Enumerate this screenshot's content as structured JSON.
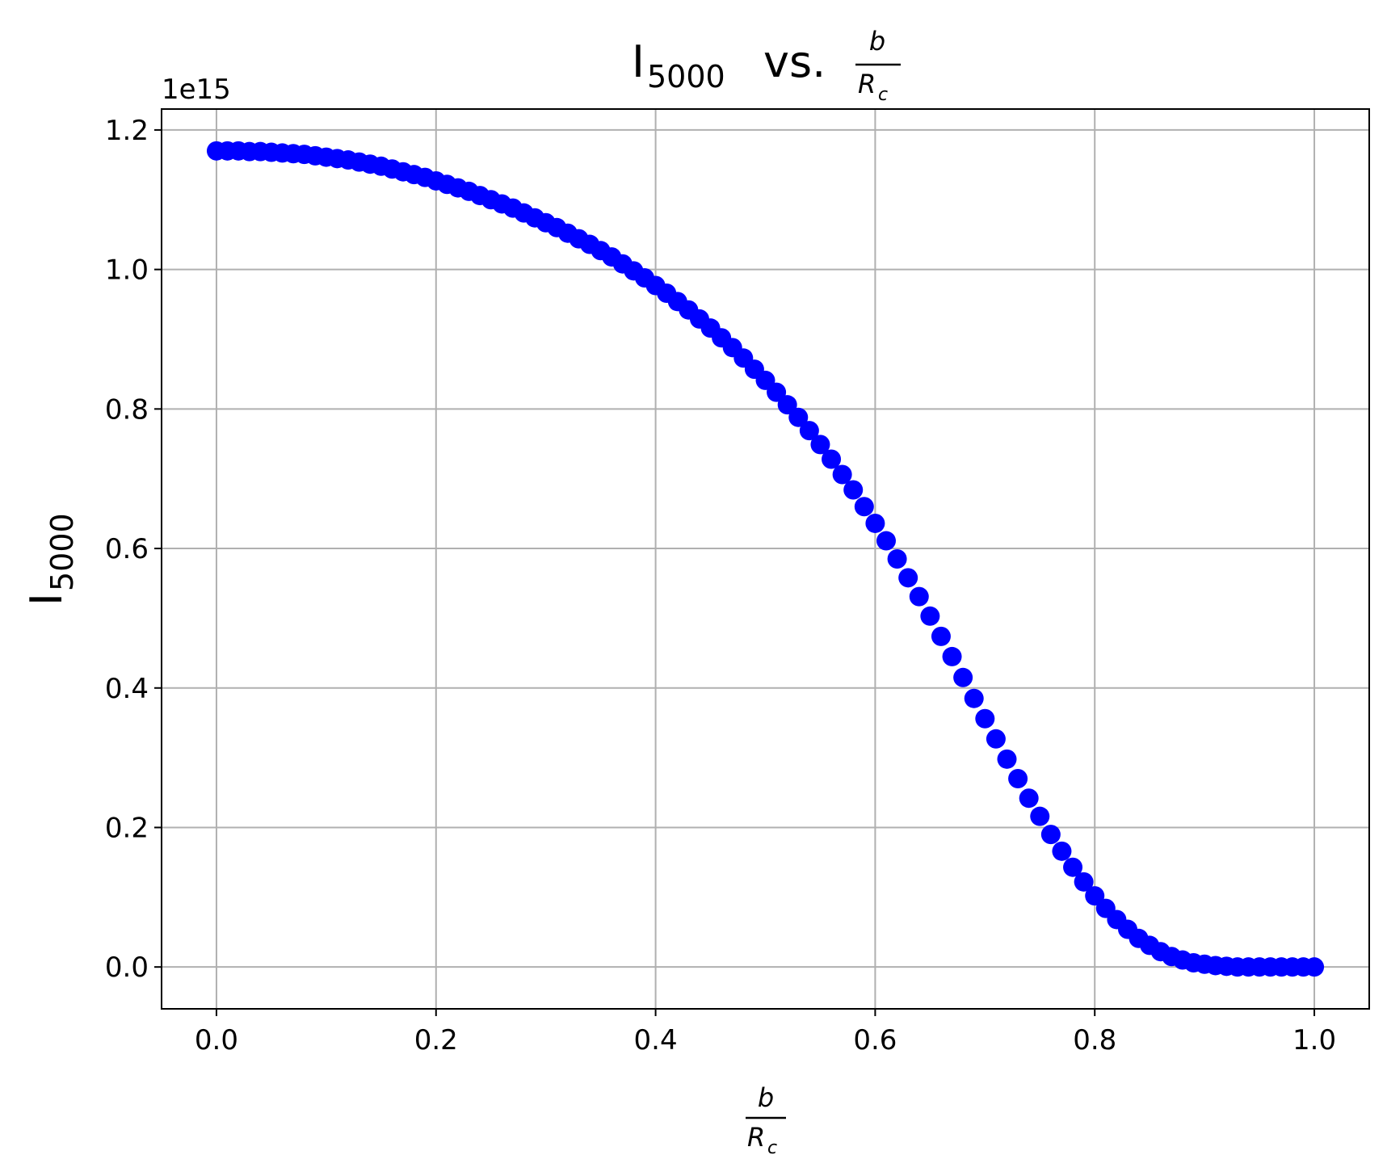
{
  "chart_data": {
    "type": "scatter",
    "title": {
      "main": "I",
      "subscript": "5000",
      "connector": "vs.",
      "fraction_numerator": "b",
      "fraction_denominator": "R",
      "fraction_denominator_subscript": "c"
    },
    "xlabel": {
      "numerator": "b",
      "denominator": "R",
      "denominator_subscript": "c"
    },
    "ylabel": {
      "main": "I",
      "subscript": "5000"
    },
    "y_offset_text": "1e15",
    "xlim": [
      -0.05,
      1.05
    ],
    "ylim": [
      -0.06,
      1.23
    ],
    "y_scale": 1000000000000000.0,
    "grid": true,
    "x_ticks": [
      0.0,
      0.2,
      0.4,
      0.6,
      0.8,
      1.0
    ],
    "x_tick_labels": [
      "0.0",
      "0.2",
      "0.4",
      "0.6",
      "0.8",
      "1.0"
    ],
    "y_ticks": [
      0.0,
      0.2,
      0.4,
      0.6,
      0.8,
      1.0,
      1.2
    ],
    "y_tick_labels": [
      "0.0",
      "0.2",
      "0.4",
      "0.6",
      "0.8",
      "1.0",
      "1.2"
    ],
    "marker_color": "#0000ff",
    "series": [
      {
        "x": [
          0.0,
          0.01,
          0.02,
          0.03,
          0.04,
          0.05,
          0.06,
          0.07,
          0.08,
          0.09,
          0.1,
          0.11,
          0.12,
          0.13,
          0.14,
          0.15,
          0.16,
          0.17,
          0.18,
          0.19,
          0.2,
          0.21,
          0.22,
          0.23,
          0.24,
          0.25,
          0.26,
          0.27,
          0.28,
          0.29,
          0.3,
          0.31,
          0.32,
          0.33,
          0.34,
          0.35,
          0.36,
          0.37,
          0.38,
          0.39,
          0.4,
          0.41,
          0.42,
          0.43,
          0.44,
          0.45,
          0.46,
          0.47,
          0.48,
          0.49,
          0.5,
          0.51,
          0.52,
          0.53,
          0.54,
          0.55,
          0.56,
          0.57,
          0.58,
          0.59,
          0.6,
          0.61,
          0.62,
          0.63,
          0.64,
          0.65,
          0.66,
          0.67,
          0.68,
          0.69,
          0.7,
          0.71,
          0.72,
          0.73,
          0.74,
          0.75,
          0.76,
          0.77,
          0.78,
          0.79,
          0.8,
          0.81,
          0.82,
          0.83,
          0.84,
          0.85,
          0.86,
          0.87,
          0.88,
          0.89,
          0.9,
          0.91,
          0.92,
          0.93,
          0.94,
          0.95,
          0.96,
          0.97,
          0.98,
          0.99,
          1.0
        ],
        "y": [
          1.17,
          1.17,
          1.17,
          1.169,
          1.169,
          1.168,
          1.167,
          1.166,
          1.165,
          1.163,
          1.161,
          1.159,
          1.157,
          1.154,
          1.151,
          1.148,
          1.144,
          1.14,
          1.136,
          1.132,
          1.127,
          1.122,
          1.117,
          1.112,
          1.106,
          1.1,
          1.094,
          1.088,
          1.081,
          1.074,
          1.067,
          1.06,
          1.052,
          1.044,
          1.036,
          1.027,
          1.018,
          1.008,
          0.998,
          0.988,
          0.977,
          0.966,
          0.954,
          0.942,
          0.929,
          0.916,
          0.902,
          0.888,
          0.873,
          0.857,
          0.841,
          0.824,
          0.806,
          0.788,
          0.769,
          0.749,
          0.728,
          0.706,
          0.684,
          0.66,
          0.636,
          0.611,
          0.585,
          0.558,
          0.531,
          0.503,
          0.474,
          0.445,
          0.415,
          0.385,
          0.356,
          0.327,
          0.298,
          0.27,
          0.242,
          0.216,
          0.19,
          0.166,
          0.143,
          0.122,
          0.102,
          0.084,
          0.068,
          0.054,
          0.041,
          0.031,
          0.022,
          0.015,
          0.01,
          0.006,
          0.004,
          0.002,
          0.001,
          0.0,
          0.0,
          0.0,
          0.0,
          0.0,
          0.0,
          0.0,
          0.0
        ]
      }
    ]
  }
}
